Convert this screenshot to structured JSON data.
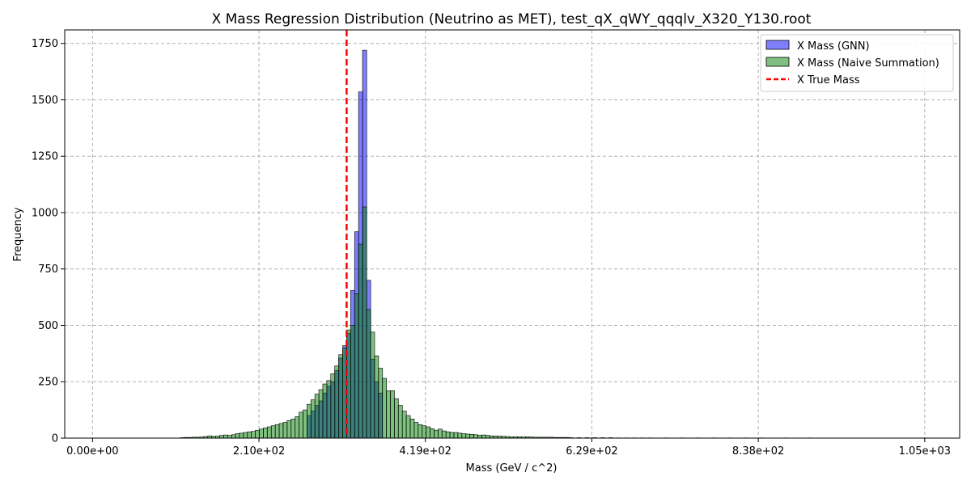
{
  "chart_data": {
    "type": "bar",
    "title": "X Mass Regression Distribution (Neutrino as MET), test_qX_qWY_qqqlv_X320_Y130.root",
    "xlabel": "Mass (GeV / c^2)",
    "ylabel": "Frequency",
    "xlim": [
      -35,
      1092
    ],
    "ylim": [
      0,
      1810
    ],
    "x_ticks": [
      0,
      209.6,
      419.2,
      628.8,
      838.4,
      1048
    ],
    "x_tick_labels": [
      "0.00e+00",
      "2.10e+02",
      "4.19e+02",
      "6.29e+02",
      "8.38e+02",
      "1.05e+03"
    ],
    "y_ticks": [
      0,
      250,
      500,
      750,
      1000,
      1250,
      1500,
      1750
    ],
    "y_tick_labels": [
      "0",
      "250",
      "500",
      "750",
      "1000",
      "1250",
      "1500",
      "1750"
    ],
    "grid": true,
    "legend_position": "top-right",
    "bin_width": 5.24,
    "true_mass": 320,
    "series": [
      {
        "name": "X Mass (GNN)",
        "color": "#0000ff",
        "alpha": 0.5,
        "bins": [
          [
            270,
            100
          ],
          [
            275,
            120
          ],
          [
            280,
            145
          ],
          [
            285,
            165
          ],
          [
            290,
            200
          ],
          [
            295,
            230
          ],
          [
            300,
            250
          ],
          [
            305,
            300
          ],
          [
            310,
            355
          ],
          [
            315,
            410
          ],
          [
            320,
            465
          ],
          [
            325,
            655
          ],
          [
            330,
            915
          ],
          [
            335,
            1535
          ],
          [
            340,
            1720
          ],
          [
            345,
            700
          ],
          [
            350,
            350
          ],
          [
            355,
            250
          ],
          [
            360,
            200
          ]
        ]
      },
      {
        "name": "X Mass (Naive Summation)",
        "color": "#008000",
        "alpha": 0.5,
        "bins": [
          [
            110,
            2
          ],
          [
            115,
            3
          ],
          [
            120,
            3
          ],
          [
            125,
            4
          ],
          [
            130,
            4
          ],
          [
            135,
            5
          ],
          [
            140,
            7
          ],
          [
            145,
            10
          ],
          [
            150,
            8
          ],
          [
            155,
            9
          ],
          [
            160,
            12
          ],
          [
            165,
            14
          ],
          [
            170,
            12
          ],
          [
            175,
            15
          ],
          [
            180,
            20
          ],
          [
            185,
            22
          ],
          [
            190,
            25
          ],
          [
            195,
            28
          ],
          [
            200,
            30
          ],
          [
            205,
            35
          ],
          [
            210,
            40
          ],
          [
            215,
            45
          ],
          [
            220,
            50
          ],
          [
            225,
            55
          ],
          [
            230,
            60
          ],
          [
            235,
            65
          ],
          [
            240,
            70
          ],
          [
            245,
            78
          ],
          [
            250,
            85
          ],
          [
            255,
            95
          ],
          [
            260,
            115
          ],
          [
            265,
            125
          ],
          [
            270,
            150
          ],
          [
            275,
            170
          ],
          [
            280,
            195
          ],
          [
            285,
            215
          ],
          [
            290,
            240
          ],
          [
            295,
            255
          ],
          [
            300,
            285
          ],
          [
            305,
            320
          ],
          [
            310,
            370
          ],
          [
            315,
            400
          ],
          [
            320,
            480
          ],
          [
            325,
            500
          ],
          [
            330,
            640
          ],
          [
            335,
            860
          ],
          [
            340,
            1025
          ],
          [
            345,
            570
          ],
          [
            350,
            470
          ],
          [
            355,
            365
          ],
          [
            360,
            310
          ],
          [
            365,
            265
          ],
          [
            370,
            210
          ],
          [
            375,
            210
          ],
          [
            380,
            175
          ],
          [
            385,
            145
          ],
          [
            390,
            120
          ],
          [
            395,
            100
          ],
          [
            400,
            85
          ],
          [
            405,
            70
          ],
          [
            410,
            60
          ],
          [
            415,
            55
          ],
          [
            420,
            50
          ],
          [
            425,
            42
          ],
          [
            430,
            35
          ],
          [
            435,
            40
          ],
          [
            440,
            32
          ],
          [
            445,
            28
          ],
          [
            450,
            25
          ],
          [
            455,
            25
          ],
          [
            460,
            22
          ],
          [
            465,
            20
          ],
          [
            470,
            18
          ],
          [
            475,
            17
          ],
          [
            480,
            15
          ],
          [
            485,
            13
          ],
          [
            490,
            14
          ],
          [
            495,
            12
          ],
          [
            500,
            10
          ],
          [
            505,
            9
          ],
          [
            510,
            9
          ],
          [
            515,
            8
          ],
          [
            520,
            7
          ],
          [
            525,
            6
          ],
          [
            530,
            6
          ],
          [
            535,
            6
          ],
          [
            540,
            5
          ],
          [
            545,
            6
          ],
          [
            550,
            5
          ],
          [
            555,
            4
          ],
          [
            560,
            4
          ],
          [
            565,
            4
          ],
          [
            570,
            4
          ],
          [
            575,
            4
          ],
          [
            580,
            3
          ],
          [
            585,
            3
          ],
          [
            590,
            3
          ],
          [
            595,
            3
          ],
          [
            600,
            2
          ],
          [
            610,
            2
          ],
          [
            620,
            2
          ],
          [
            630,
            2
          ],
          [
            640,
            2
          ],
          [
            650,
            2
          ],
          [
            660,
            1
          ],
          [
            670,
            1
          ],
          [
            680,
            1
          ],
          [
            690,
            1
          ],
          [
            700,
            1
          ],
          [
            720,
            1
          ],
          [
            740,
            1
          ],
          [
            760,
            1
          ],
          [
            780,
            1
          ],
          [
            800,
            1
          ],
          [
            820,
            1
          ],
          [
            840,
            1
          ],
          [
            870,
            1
          ],
          [
            900,
            1
          ],
          [
            1045,
            1
          ]
        ]
      }
    ],
    "vline": {
      "name": "X True Mass",
      "x": 320,
      "color": "#ff0000",
      "style": "dashed"
    }
  }
}
